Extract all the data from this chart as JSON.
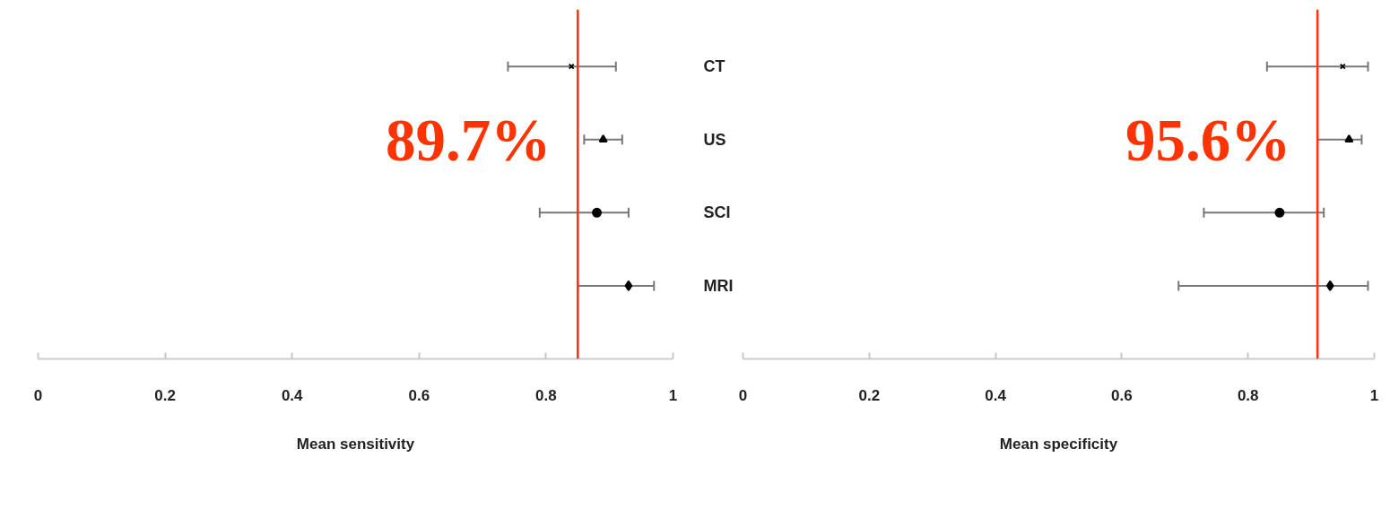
{
  "chart_data": [
    {
      "type": "scatter",
      "orientation": "horizontal",
      "categories": [
        "CT",
        "US",
        "SCI",
        "MRI"
      ],
      "xlabel": "Mean sensitivity",
      "xlim": [
        0,
        1
      ],
      "xticks": [
        0,
        0.2,
        0.4,
        0.6,
        0.8,
        1
      ],
      "series": [
        {
          "color": "#000000",
          "marker": "cross",
          "values": [
            0.84,
            null,
            null,
            null
          ],
          "errors": [
            [
              0.74,
              0.91
            ],
            null,
            null,
            null
          ]
        },
        {
          "color": "#000000",
          "marker": "triangle",
          "values": [
            null,
            0.89,
            null,
            null
          ],
          "errors": [
            null,
            [
              0.86,
              0.92
            ],
            null,
            null
          ]
        },
        {
          "color": "#000000",
          "marker": "circle",
          "values": [
            null,
            null,
            0.88,
            null
          ],
          "errors": [
            null,
            null,
            [
              0.79,
              0.93
            ],
            null
          ]
        },
        {
          "color": "#000000",
          "marker": "diamond",
          "values": [
            null,
            null,
            null,
            0.93
          ],
          "errors": [
            null,
            null,
            null,
            [
              0.85,
              0.97
            ]
          ]
        }
      ],
      "ref_lines": [
        {
          "axis": "x",
          "value": 0.85,
          "color": "#ff3300"
        }
      ],
      "annotations": [
        "89.7%"
      ]
    },
    {
      "type": "scatter",
      "orientation": "horizontal",
      "categories": [
        null,
        null,
        null,
        null
      ],
      "xlabel": "Mean specificity",
      "xlim": [
        0,
        1
      ],
      "xticks": [
        0,
        0.2,
        0.4,
        0.6,
        0.8,
        1
      ],
      "series": [
        {
          "color": "#000000",
          "marker": "cross",
          "values": [
            0.95,
            null,
            null,
            null
          ],
          "errors": [
            [
              0.83,
              0.99
            ],
            null,
            null,
            null
          ]
        },
        {
          "color": "#000000",
          "marker": "triangle",
          "values": [
            null,
            0.96,
            null,
            null
          ],
          "errors": [
            null,
            [
              0.91,
              0.98
            ],
            null,
            null
          ]
        },
        {
          "color": "#000000",
          "marker": "circle",
          "values": [
            null,
            null,
            0.85,
            null
          ],
          "errors": [
            null,
            null,
            [
              0.73,
              0.92
            ],
            null
          ]
        },
        {
          "color": "#000000",
          "marker": "diamond",
          "values": [
            null,
            null,
            null,
            0.93
          ],
          "errors": [
            null,
            null,
            null,
            [
              0.69,
              0.99
            ]
          ]
        }
      ],
      "ref_lines": [
        {
          "axis": "x",
          "value": 0.91,
          "color": "#ff3300"
        }
      ],
      "annotations": [
        "95.6%"
      ]
    }
  ]
}
